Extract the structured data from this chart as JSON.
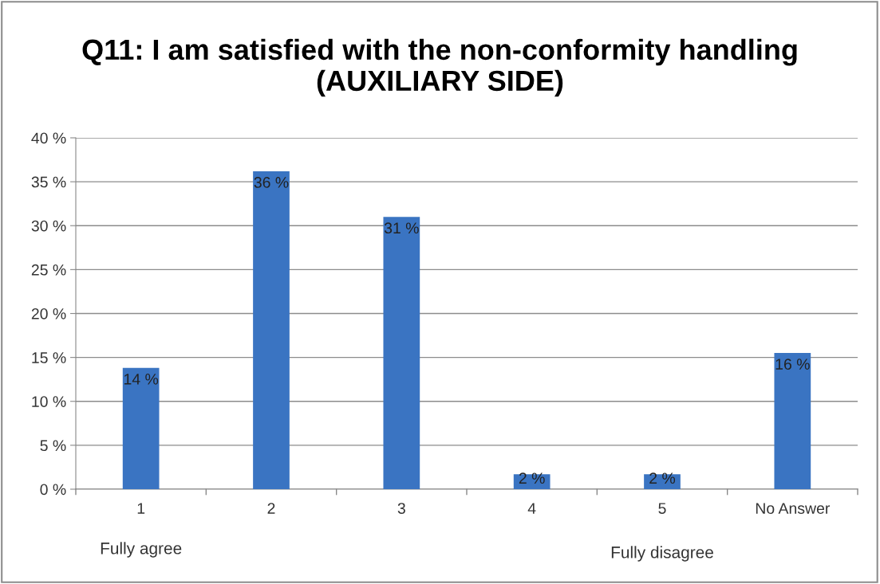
{
  "chart_data": {
    "type": "bar",
    "title": "Q11: I am satisfied with the non-conformity handling (AUXILIARY SIDE)",
    "categories": [
      "1",
      "2",
      "3",
      "4",
      "5",
      "No Answer"
    ],
    "values": [
      13.8,
      36.2,
      31.0,
      1.7,
      1.7,
      15.5
    ],
    "value_labels": [
      "14 %",
      "36 %",
      "31 %",
      "2 %",
      "2 %",
      "16 %"
    ],
    "color": "#3a74c2",
    "ylim": [
      0,
      40
    ],
    "yticks": [
      {
        "value": 0,
        "label": "0 %"
      },
      {
        "value": 5,
        "label": "5 %"
      },
      {
        "value": 10,
        "label": "10 %"
      },
      {
        "value": 15,
        "label": "15 %"
      },
      {
        "value": 20,
        "label": "20 %"
      },
      {
        "value": 25,
        "label": "25 %"
      },
      {
        "value": 30,
        "label": "30 %"
      },
      {
        "value": 35,
        "label": "35 %"
      },
      {
        "value": 40,
        "label": "40 %"
      }
    ],
    "grid": "y",
    "annotations": [
      "Fully agree",
      "Fully disagree"
    ]
  }
}
